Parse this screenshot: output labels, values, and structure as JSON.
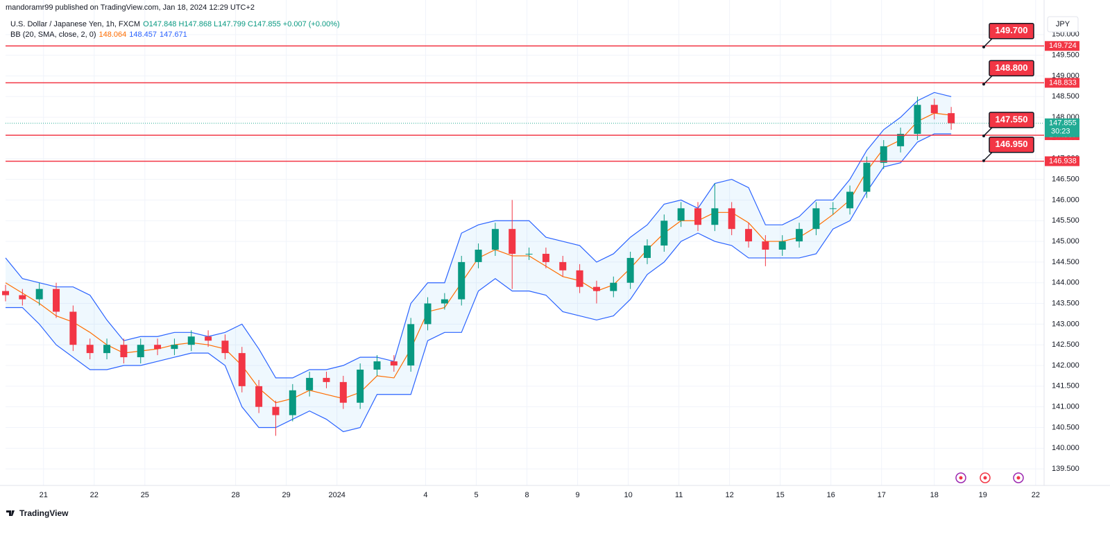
{
  "page": {
    "published": "mandoramr99 published on TradingView.com, Jan 18, 2024 12:29 UTC+2",
    "currency": "JPY",
    "footer": "TradingView"
  },
  "chart_data": {
    "type": "candlestick",
    "title": "U.S. Dollar / Japanese Yen, 1h, FXCM",
    "ohlc_labels": [
      "O147.848",
      "H147.868",
      "L147.799",
      "C147.855",
      "+0.007 (+0.00%)"
    ],
    "indicator": {
      "name": "BB (20, SMA, close, 2, 0)",
      "values": [
        148.064,
        148.457,
        147.671
      ]
    },
    "x": [
      0,
      8,
      16,
      24,
      32,
      40,
      48,
      56,
      64,
      72,
      80,
      88,
      96,
      104,
      112,
      120,
      128,
      136,
      144,
      152,
      160,
      168,
      176,
      184,
      192,
      200,
      208,
      216,
      224,
      232,
      240,
      248,
      256,
      264,
      272,
      280,
      288,
      296,
      304,
      312,
      320,
      328,
      336,
      344,
      352,
      360,
      368,
      376,
      384,
      392,
      400,
      408,
      416,
      424,
      432,
      440,
      448
    ],
    "open": [
      143.8,
      143.7,
      143.6,
      143.85,
      143.3,
      142.5,
      142.3,
      142.5,
      142.2,
      142.5,
      142.4,
      142.5,
      142.7,
      142.6,
      142.3,
      141.5,
      141.0,
      140.8,
      141.4,
      141.7,
      141.6,
      141.1,
      141.9,
      142.1,
      142.0,
      143.0,
      143.5,
      143.6,
      144.5,
      144.8,
      145.3,
      144.7,
      144.7,
      144.5,
      144.3,
      143.9,
      143.8,
      144.0,
      144.6,
      144.9,
      145.5,
      145.8,
      145.4,
      145.8,
      145.3,
      145.0,
      144.8,
      145.0,
      145.3,
      145.8,
      145.8,
      146.2,
      146.9,
      147.3,
      147.6,
      148.3,
      148.1
    ],
    "high": [
      143.95,
      143.85,
      144.0,
      144.0,
      143.45,
      142.65,
      142.65,
      142.65,
      142.65,
      142.65,
      142.65,
      142.85,
      142.85,
      142.75,
      142.45,
      141.65,
      141.15,
      141.55,
      141.85,
      141.85,
      141.75,
      142.05,
      142.25,
      142.25,
      143.15,
      143.65,
      143.75,
      144.65,
      144.95,
      145.45,
      146.0,
      144.85,
      144.85,
      144.65,
      144.45,
      144.05,
      144.15,
      144.75,
      145.05,
      145.65,
      145.95,
      145.95,
      146.4,
      145.95,
      145.45,
      145.15,
      145.15,
      145.45,
      145.95,
      145.95,
      146.35,
      147.05,
      147.45,
      147.75,
      148.5,
      148.45,
      148.25
    ],
    "low": [
      143.55,
      143.45,
      143.45,
      143.15,
      142.35,
      142.15,
      142.15,
      142.05,
      142.05,
      142.25,
      142.25,
      142.35,
      142.45,
      142.15,
      141.35,
      140.85,
      140.3,
      140.65,
      141.25,
      141.45,
      140.95,
      140.95,
      141.75,
      141.85,
      141.85,
      142.85,
      143.35,
      143.45,
      144.35,
      144.65,
      143.85,
      144.55,
      144.35,
      144.15,
      143.75,
      143.5,
      143.65,
      143.85,
      144.45,
      144.75,
      145.35,
      145.25,
      145.25,
      145.15,
      144.85,
      144.4,
      144.65,
      144.85,
      145.15,
      145.65,
      145.65,
      146.05,
      146.75,
      147.15,
      147.45,
      147.95,
      147.7
    ],
    "close": [
      143.7,
      143.6,
      143.85,
      143.3,
      142.5,
      142.3,
      142.5,
      142.2,
      142.5,
      142.4,
      142.5,
      142.7,
      142.6,
      142.3,
      141.5,
      141.0,
      140.8,
      141.4,
      141.7,
      141.6,
      141.1,
      141.9,
      142.1,
      142.0,
      143.0,
      143.5,
      143.6,
      144.5,
      144.8,
      145.3,
      144.7,
      144.7,
      144.5,
      144.3,
      143.9,
      143.8,
      144.0,
      144.6,
      144.9,
      145.5,
      145.8,
      145.4,
      145.8,
      145.3,
      145.0,
      144.8,
      145.0,
      145.3,
      145.8,
      145.8,
      146.2,
      146.9,
      147.3,
      147.6,
      148.3,
      148.1,
      147.855
    ],
    "up_color": "#089981",
    "down_color": "#f23645",
    "series": [
      {
        "color": "#ff6d00",
        "values": [
          144.0,
          143.75,
          143.5,
          143.2,
          143.05,
          142.8,
          142.5,
          142.3,
          142.35,
          142.4,
          142.5,
          142.55,
          142.5,
          142.4,
          142.0,
          141.45,
          141.1,
          141.2,
          141.4,
          141.3,
          141.2,
          141.35,
          141.75,
          141.7,
          142.4,
          143.3,
          143.4,
          144.0,
          144.6,
          144.8,
          144.65,
          144.65,
          144.4,
          144.15,
          144.05,
          143.8,
          143.95,
          144.35,
          144.8,
          145.2,
          145.5,
          145.5,
          145.7,
          145.7,
          145.45,
          145.0,
          145.0,
          145.1,
          145.35,
          145.65,
          146.0,
          146.7,
          147.25,
          147.45,
          147.9,
          148.1,
          148.05
        ]
      },
      {
        "color": "#2962ff",
        "values": [
          144.6,
          144.1,
          144.0,
          143.9,
          143.9,
          143.7,
          143.1,
          142.6,
          142.7,
          142.7,
          142.8,
          142.8,
          142.7,
          142.8,
          143.0,
          142.4,
          141.7,
          141.7,
          141.9,
          141.9,
          142.0,
          142.2,
          142.2,
          142.1,
          143.5,
          144.0,
          144.0,
          145.2,
          145.4,
          145.5,
          145.5,
          145.5,
          145.1,
          145.0,
          144.9,
          144.5,
          144.7,
          145.1,
          145.4,
          145.9,
          146.0,
          145.8,
          146.4,
          146.5,
          146.3,
          145.4,
          145.4,
          145.6,
          146.0,
          146.0,
          146.5,
          147.2,
          147.7,
          148.0,
          148.4,
          148.6,
          148.5
        ]
      },
      {
        "color": "#2962ff",
        "values": [
          143.4,
          143.4,
          143.0,
          142.5,
          142.2,
          141.9,
          141.9,
          142.0,
          142.0,
          142.1,
          142.2,
          142.3,
          142.3,
          142.0,
          141.0,
          140.5,
          140.5,
          140.7,
          140.9,
          140.7,
          140.4,
          140.5,
          141.3,
          141.3,
          141.3,
          142.6,
          142.8,
          142.8,
          143.8,
          144.1,
          143.8,
          143.8,
          143.7,
          143.3,
          143.2,
          143.1,
          143.2,
          143.6,
          144.2,
          144.5,
          145.0,
          145.2,
          145.0,
          144.9,
          144.6,
          144.6,
          144.6,
          144.6,
          144.7,
          145.3,
          145.5,
          146.2,
          146.8,
          146.9,
          147.4,
          147.6,
          147.6
        ]
      }
    ],
    "band_fill": "rgba(33,150,243,0.07)",
    "hlines": [
      149.724,
      148.833,
      147.567,
      146.938
    ],
    "hline_color": "#f23645",
    "callouts": [
      {
        "value": 149.7,
        "label": "149.700"
      },
      {
        "value": 148.8,
        "label": "148.800"
      },
      {
        "value": 147.55,
        "label": "147.550"
      },
      {
        "value": 146.95,
        "label": "146.950"
      }
    ],
    "last_price": 147.855,
    "countdown": "30:23",
    "last_color": "#22ab94",
    "xlim": [
      0,
      492
    ],
    "xticks": [
      {
        "value": 18,
        "label": "21"
      },
      {
        "value": 42,
        "label": "22"
      },
      {
        "value": 66,
        "label": "25"
      },
      {
        "value": 109,
        "label": "28"
      },
      {
        "value": 133,
        "label": "29"
      },
      {
        "value": 157,
        "label": "2024"
      },
      {
        "value": 199,
        "label": "4"
      },
      {
        "value": 223,
        "label": "5"
      },
      {
        "value": 247,
        "label": "8"
      },
      {
        "value": 271,
        "label": "9"
      },
      {
        "value": 295,
        "label": "10"
      },
      {
        "value": 319,
        "label": "11"
      },
      {
        "value": 343,
        "label": "12"
      },
      {
        "value": 367,
        "label": "15"
      },
      {
        "value": 391,
        "label": "16"
      },
      {
        "value": 415,
        "label": "17"
      },
      {
        "value": 440,
        "label": "18"
      },
      {
        "value": 463,
        "label": "19"
      },
      {
        "value": 488,
        "label": "22"
      }
    ],
    "ylim": [
      139.1,
      150.5
    ],
    "yticks": [
      {
        "value": 139.5,
        "label": "139.500"
      },
      {
        "value": 140,
        "label": "140.000"
      },
      {
        "value": 140.5,
        "label": "140.500"
      },
      {
        "value": 141,
        "label": "141.000"
      },
      {
        "value": 141.5,
        "label": "141.500"
      },
      {
        "value": 142,
        "label": "142.000"
      },
      {
        "value": 142.5,
        "label": "142.500"
      },
      {
        "value": 143,
        "label": "143.000"
      },
      {
        "value": 143.5,
        "label": "143.500"
      },
      {
        "value": 144,
        "label": "144.000"
      },
      {
        "value": 144.5,
        "label": "144.500"
      },
      {
        "value": 145,
        "label": "145.000"
      },
      {
        "value": 145.5,
        "label": "145.500"
      },
      {
        "value": 146,
        "label": "146.000"
      },
      {
        "value": 146.5,
        "label": "146.500"
      },
      {
        "value": 147,
        "label": "147.000"
      },
      {
        "value": 147.5,
        "label": "147.500"
      },
      {
        "value": 148,
        "label": "148.000"
      },
      {
        "value": 148.5,
        "label": "148.500"
      },
      {
        "value": 149,
        "label": "149.000"
      },
      {
        "value": 149.5,
        "label": "149.500"
      },
      {
        "value": 150,
        "label": "150.000"
      }
    ],
    "grid": true
  }
}
